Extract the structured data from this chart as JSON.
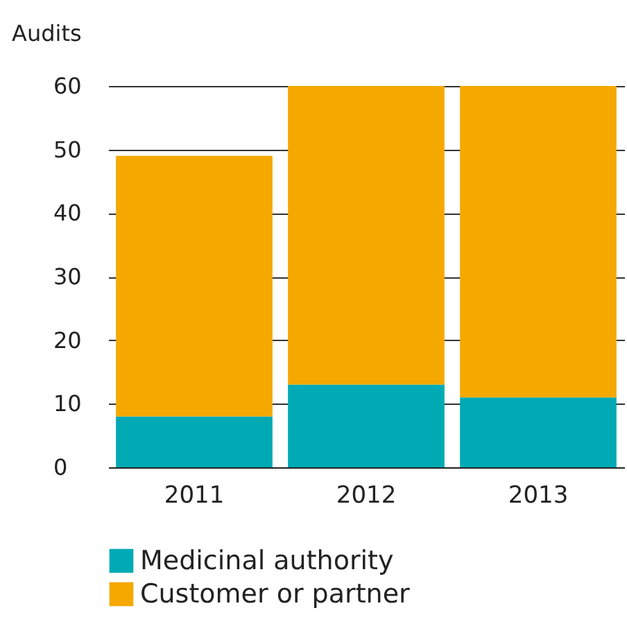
{
  "chart_data": {
    "type": "bar",
    "ylabel": "Audits",
    "categories": [
      "2011",
      "2012",
      "2013"
    ],
    "stacked": true,
    "series": [
      {
        "name": "Medicinal authority",
        "color": "#00aab4",
        "values": [
          8,
          13,
          11
        ]
      },
      {
        "name": "Customer or partner",
        "color": "#f5a800",
        "values": [
          41,
          47,
          49
        ]
      }
    ],
    "ylim": [
      0,
      60
    ],
    "yticks": [
      0,
      10,
      20,
      30,
      40,
      50,
      60
    ],
    "grid": "y",
    "legend": "bottom"
  }
}
